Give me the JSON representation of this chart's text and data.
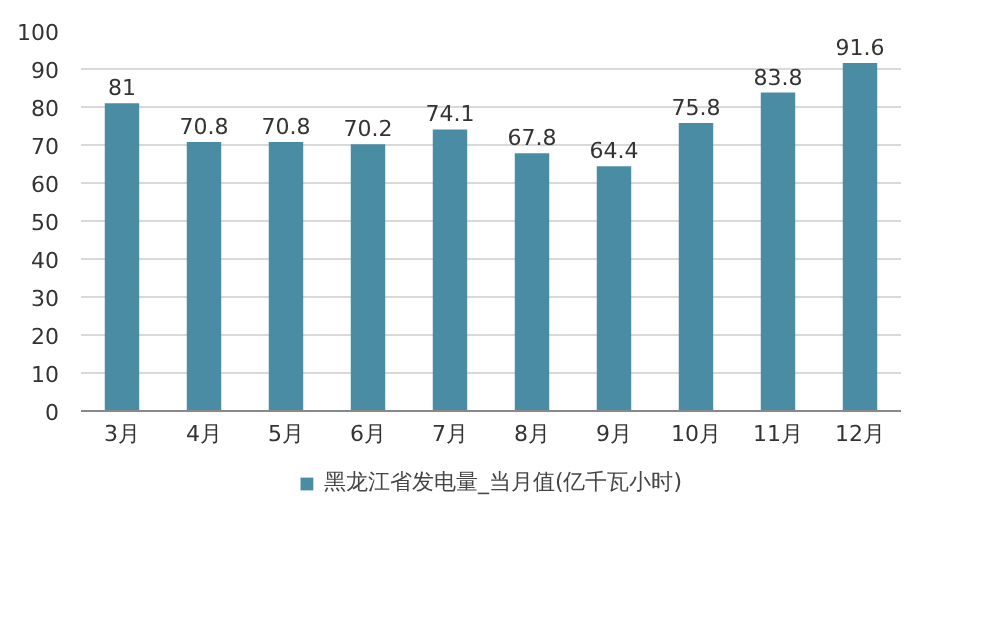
{
  "chart_data": {
    "type": "bar",
    "categories": [
      "3月",
      "4月",
      "5月",
      "6月",
      "7月",
      "8月",
      "9月",
      "10月",
      "11月",
      "12月"
    ],
    "series": [
      {
        "name": "黑龙江省发电量_当月值(亿千瓦小时)",
        "color": "#4a8ca4",
        "values": [
          81,
          70.8,
          70.8,
          70.2,
          74.1,
          67.8,
          64.4,
          75.8,
          83.8,
          91.6
        ]
      }
    ],
    "ylim": [
      0,
      100
    ],
    "yticks": [
      0,
      10,
      20,
      30,
      40,
      50,
      60,
      70,
      80,
      90,
      100
    ],
    "grid": "y",
    "data_labels": true,
    "legend": "bottom"
  }
}
